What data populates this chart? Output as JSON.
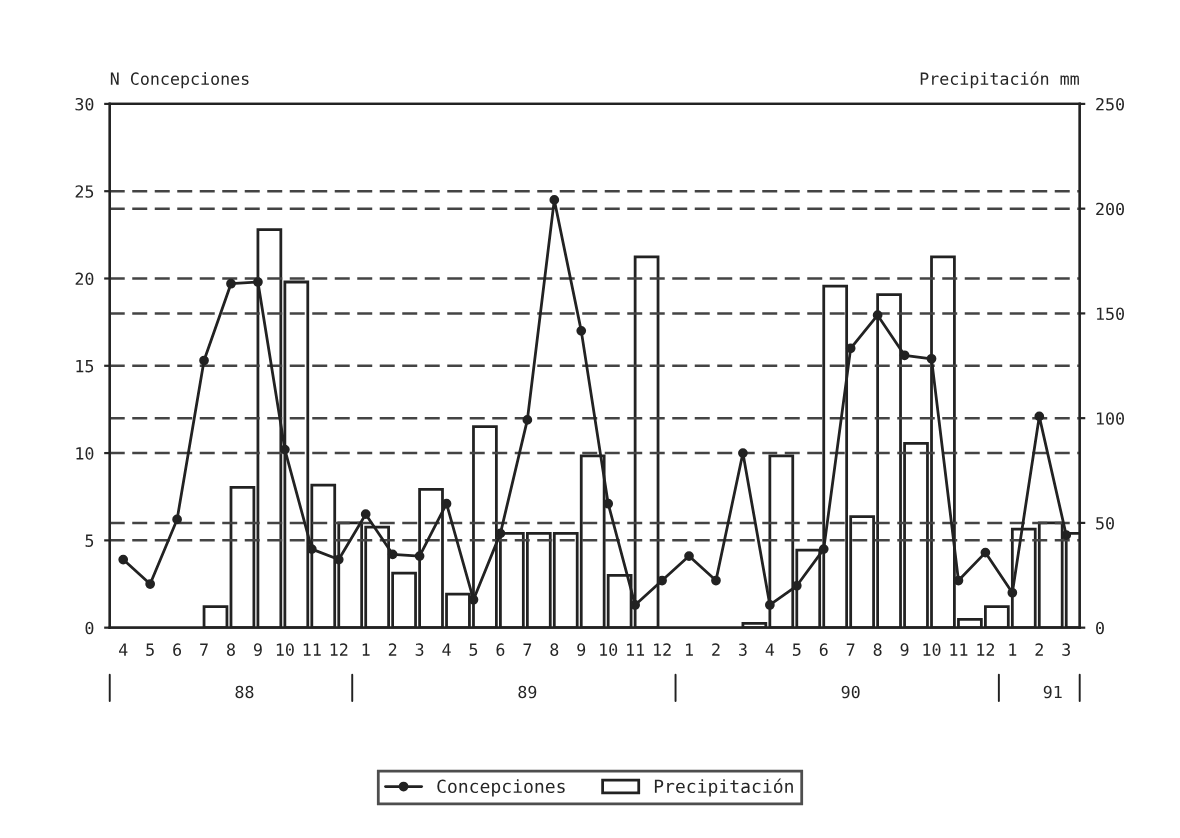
{
  "chart_data": {
    "type": "bar",
    "ylabel": "N Concepciones",
    "y2label": "Precipitación mm",
    "categories": [
      "4",
      "5",
      "6",
      "7",
      "8",
      "9",
      "10",
      "11",
      "12",
      "1",
      "2",
      "3",
      "4",
      "5",
      "6",
      "7",
      "8",
      "9",
      "10",
      "11",
      "12",
      "1",
      "2",
      "3",
      "4",
      "5",
      "6",
      "7",
      "8",
      "9",
      "10",
      "11",
      "12",
      "1",
      "2",
      "3"
    ],
    "series": [
      {
        "name": "Precipitación",
        "axis": "y2",
        "color": "#ffffff",
        "values": [
          0,
          0,
          0,
          10,
          67,
          190,
          165,
          68,
          50,
          48,
          26,
          66,
          16,
          96,
          45,
          45,
          45,
          82,
          25,
          177,
          0,
          0,
          0,
          2,
          82,
          37,
          163,
          53,
          159,
          88,
          177,
          4,
          10,
          47,
          50,
          45
        ]
      },
      {
        "name": "Concepciones",
        "type": "line",
        "axis": "y",
        "color": "#222222",
        "marker": "circle",
        "line_style": "solid",
        "values": [
          3.9,
          2.5,
          6.2,
          15.3,
          19.7,
          19.8,
          10.2,
          4.5,
          3.9,
          6.5,
          4.2,
          4.1,
          7.1,
          1.6,
          5.4,
          11.9,
          24.5,
          17,
          7.1,
          1.3,
          2.7,
          4.1,
          2.7,
          10,
          1.3,
          2.4,
          4.5,
          16,
          17.9,
          15.6,
          15.4,
          2.7,
          4.3,
          2,
          12.1,
          5.3
        ]
      }
    ],
    "ylim": [
      0,
      30
    ],
    "yticks": [
      0,
      5,
      10,
      15,
      20,
      25,
      30
    ],
    "y2lim": [
      0,
      250
    ],
    "y2ticks": [
      0,
      50,
      100,
      150,
      200,
      250
    ],
    "ref_lines": [
      {
        "axis": "y",
        "value": 25,
        "line_style": "dashed"
      },
      {
        "axis": "y",
        "value": 24,
        "line_style": "dashed"
      },
      {
        "axis": "y",
        "value": 20,
        "line_style": "dashed"
      },
      {
        "axis": "y",
        "value": 18,
        "line_style": "dashed"
      },
      {
        "axis": "y",
        "value": 15,
        "line_style": "dashed"
      },
      {
        "axis": "y",
        "value": 12,
        "line_style": "dashed"
      },
      {
        "axis": "y",
        "value": 10,
        "line_style": "dashed"
      },
      {
        "axis": "y",
        "value": 6,
        "line_style": "dashed"
      },
      {
        "axis": "y",
        "value": 5,
        "line_style": "dashed"
      }
    ],
    "annotations": [
      "88",
      "89",
      "90",
      "91"
    ],
    "legend": "bottom",
    "grid": false
  }
}
